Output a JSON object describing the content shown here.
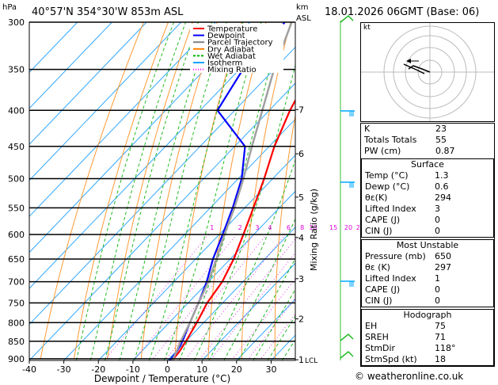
{
  "header": {
    "location": "40°57'N  354°30'W  853m  ASL",
    "datetime": "18.01.2026  06GMT  (Base: 06)",
    "hpa_unit": "hPa",
    "km_unit": "km",
    "asl_unit": "ASL"
  },
  "legend": [
    {
      "label": "Temperature",
      "color": "#ff0000"
    },
    {
      "label": "Dewpoint",
      "color": "#0000ff"
    },
    {
      "label": "Parcel Trajectory",
      "color": "#808080"
    },
    {
      "label": "Dry Adiabat",
      "color": "#ff8000"
    },
    {
      "label": "Wet Adiabat",
      "color": "#00b000"
    },
    {
      "label": "Isotherm",
      "color": "#00a0ff"
    },
    {
      "label": "Mixing Ratio",
      "color": "#ff00ff"
    }
  ],
  "chart_data": {
    "type": "line",
    "xlabel": "Dewpoint / Temperature (°C)",
    "ylabel": "",
    "x_ticks": [
      -40,
      -30,
      -20,
      -10,
      0,
      10,
      20,
      30
    ],
    "pressure_levels": [
      300,
      350,
      400,
      450,
      500,
      550,
      600,
      650,
      700,
      750,
      800,
      850,
      900
    ],
    "km_ticks": [
      {
        "km": "1",
        "p": 903
      },
      {
        "km": "2",
        "p": 790
      },
      {
        "km": "3",
        "p": 693
      },
      {
        "km": "4",
        "p": 606
      },
      {
        "km": "5",
        "p": 531
      },
      {
        "km": "6",
        "p": 461
      },
      {
        "km": "7",
        "p": 399
      }
    ],
    "lcl_label": "LCL",
    "mixing_ratio_axis_label": "Mixing Ratio (g/kg)",
    "mixing_ratio_labels": [
      "1",
      "2",
      "3",
      "4",
      "6",
      "8",
      "10",
      "15",
      "20",
      "25"
    ],
    "series": [
      {
        "name": "Temperature",
        "color": "#ff0000",
        "points": [
          [
            1.3,
            905
          ],
          [
            1.0,
            880
          ],
          [
            0.0,
            850
          ],
          [
            -2.0,
            800
          ],
          [
            -4.5,
            750
          ],
          [
            -6.0,
            700
          ],
          [
            -9.0,
            650
          ],
          [
            -13.0,
            600
          ],
          [
            -17.5,
            550
          ],
          [
            -22.5,
            500
          ],
          [
            -28.5,
            450
          ],
          [
            -34.0,
            400
          ],
          [
            -39.0,
            350
          ],
          [
            -42.5,
            300
          ]
        ]
      },
      {
        "name": "Dewpoint",
        "color": "#0000ff",
        "points": [
          [
            0.6,
            905
          ],
          [
            0.3,
            880
          ],
          [
            -1.0,
            850
          ],
          [
            -4.0,
            800
          ],
          [
            -7.0,
            750
          ],
          [
            -10.5,
            700
          ],
          [
            -15.0,
            650
          ],
          [
            -19.0,
            600
          ],
          [
            -23.5,
            550
          ],
          [
            -29.0,
            500
          ],
          [
            -37.0,
            450
          ],
          [
            -55.0,
            400
          ],
          [
            -59.0,
            350
          ],
          [
            -60.0,
            300
          ]
        ]
      },
      {
        "name": "Parcel Trajectory",
        "color": "#a0a0a0",
        "points": [
          [
            1.3,
            905
          ],
          [
            0.7,
            890
          ],
          [
            -1.5,
            850
          ],
          [
            -4.0,
            800
          ],
          [
            -7.0,
            750
          ],
          [
            -10.0,
            700
          ],
          [
            -14.0,
            650
          ],
          [
            -18.5,
            600
          ],
          [
            -23.0,
            550
          ],
          [
            -28.5,
            500
          ],
          [
            -35.0,
            450
          ],
          [
            -42.0,
            400
          ],
          [
            -50.0,
            350
          ],
          [
            -58.0,
            300
          ]
        ]
      }
    ]
  },
  "indices": {
    "K": {
      "label": "K",
      "value": "23"
    },
    "TT": {
      "label": "Totals Totals",
      "value": "55"
    },
    "PW": {
      "label": "PW (cm)",
      "value": "0.87"
    }
  },
  "surface": {
    "title": "Surface",
    "rows": [
      {
        "label": "Temp (°C)",
        "value": "1.3"
      },
      {
        "label": "Dewp (°C)",
        "value": "0.6"
      },
      {
        "label": "θε(K)",
        "value": "294"
      },
      {
        "label": "Lifted Index",
        "value": "3"
      },
      {
        "label": "CAPE (J)",
        "value": "0"
      },
      {
        "label": "CIN (J)",
        "value": "0"
      }
    ]
  },
  "most_unstable": {
    "title": "Most Unstable",
    "rows": [
      {
        "label": "Pressure (mb)",
        "value": "650"
      },
      {
        "label": "θε (K)",
        "value": "297"
      },
      {
        "label": "Lifted Index",
        "value": "1"
      },
      {
        "label": "CAPE (J)",
        "value": "0"
      },
      {
        "label": "CIN (J)",
        "value": "0"
      }
    ]
  },
  "hodograph": {
    "title": "Hodograph",
    "kt_label": "kt",
    "rows": [
      {
        "label": "EH",
        "value": "75"
      },
      {
        "label": "SREH",
        "value": "71"
      },
      {
        "label": "StmDir",
        "value": "118°"
      },
      {
        "label": "StmSpd (kt)",
        "value": "18"
      }
    ]
  },
  "copyright": "© weatheronline.co.uk"
}
